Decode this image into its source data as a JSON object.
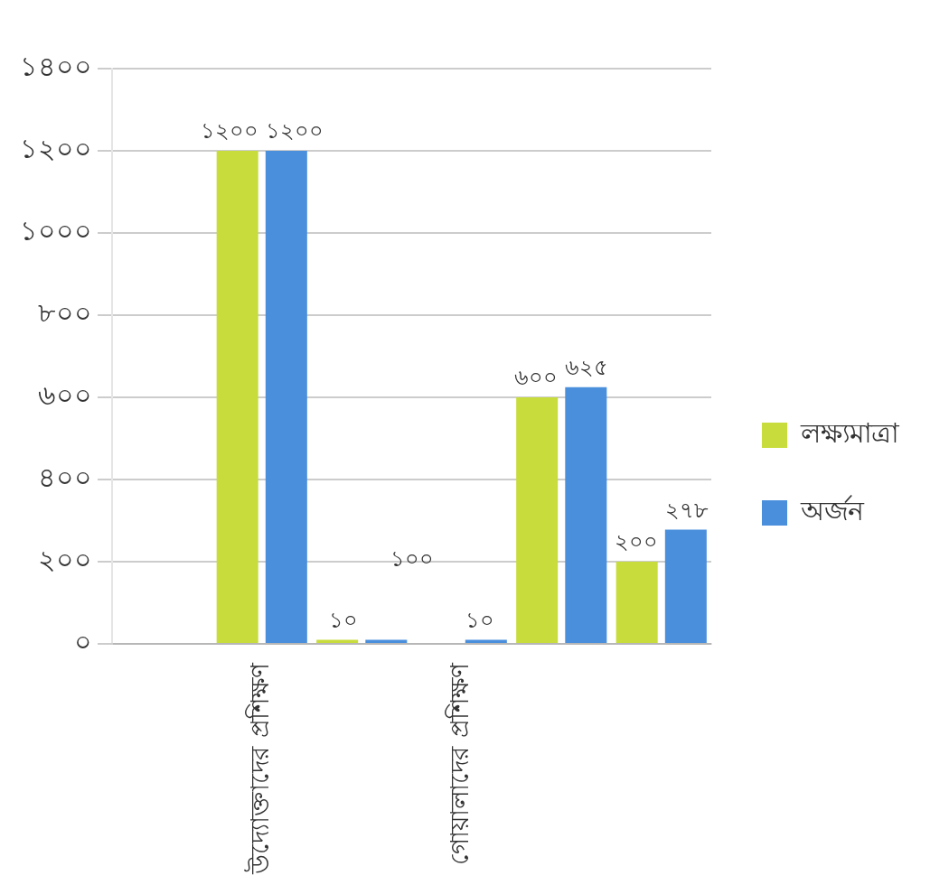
{
  "chart_data": {
    "type": "bar",
    "categories": [
      null,
      "উদ্যোক্তাদের প্রশিক্ষণ",
      null,
      "গোয়ালাদের প্রশিক্ষণ",
      null,
      null
    ],
    "series": [
      {
        "name": "লক্ষ্যমাত্রা",
        "color": "#c8dc3c",
        "values": [
          null,
          1200,
          10,
          null,
          600,
          200
        ],
        "value_labels": [
          null,
          "১২০০",
          "১০",
          null,
          "৬০০",
          "২০০"
        ]
      },
      {
        "name": "অর্জন",
        "color": "#4a8fdc",
        "values": [
          null,
          1200,
          10,
          10,
          625,
          278
        ],
        "value_labels": [
          null,
          "১২০০",
          null,
          "১০",
          "৬২৫",
          "২৭৮"
        ]
      }
    ],
    "annotations": [
      "১০০"
    ],
    "ylim": [
      0,
      1400
    ],
    "yticks": [
      {
        "value": 0,
        "label": "০"
      },
      {
        "value": 200,
        "label": "২০০"
      },
      {
        "value": 400,
        "label": "৪০০"
      },
      {
        "value": 600,
        "label": "৬০০"
      },
      {
        "value": 800,
        "label": "৮০০"
      },
      {
        "value": 1000,
        "label": "১০০০"
      },
      {
        "value": 1200,
        "label": "১২০০"
      },
      {
        "value": 1400,
        "label": "১৪০০"
      }
    ],
    "grid": "y",
    "legend": "right"
  }
}
